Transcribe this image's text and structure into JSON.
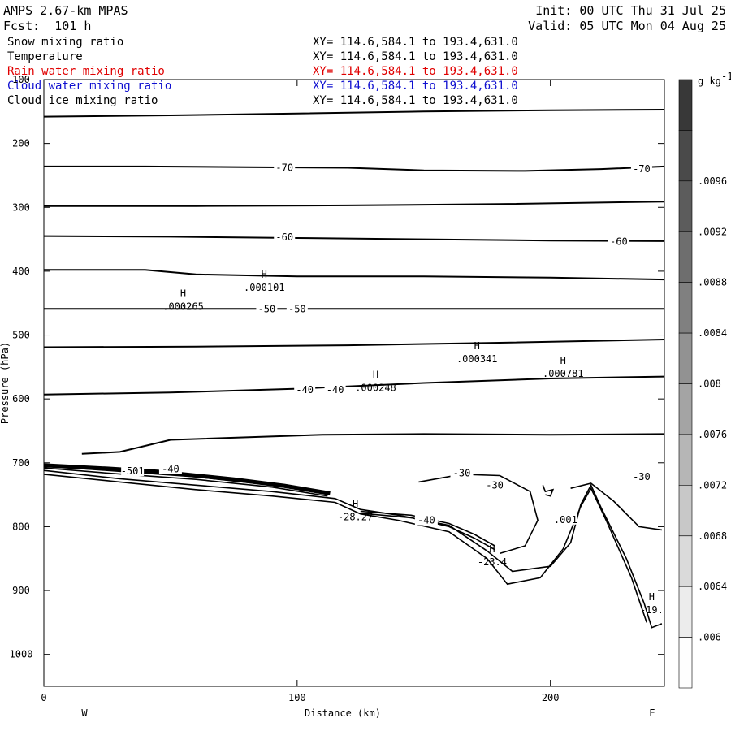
{
  "header": {
    "model": "AMPS 2.67-km MPAS",
    "forecast": "Fcst:  101 h",
    "init": "Init: 00 UTC Thu 31 Jul 25",
    "valid": "Valid: 05 UTC Mon 04 Aug 25"
  },
  "fields": [
    {
      "name": "Snow mixing ratio",
      "range": "XY= 114.6,584.1 to 193.4,631.0",
      "color": "#000000"
    },
    {
      "name": "Temperature",
      "range": "XY= 114.6,584.1 to 193.4,631.0",
      "color": "#000000"
    },
    {
      "name": "Rain water mixing ratio",
      "range": "XY= 114.6,584.1 to 193.4,631.0",
      "color": "#e00000"
    },
    {
      "name": "Cloud water mixing ratio",
      "range": "XY= 114.6,584.1 to 193.4,631.0",
      "color": "#1010d0"
    },
    {
      "name": "Cloud ice mixing ratio",
      "range": "XY= 114.6,584.1 to 193.4,631.0",
      "color": "#000000"
    }
  ],
  "chart_data": {
    "type": "line",
    "xlabel": "Distance (km)",
    "ylabel": "Pressure (hPa)",
    "xlim": [
      0,
      245
    ],
    "ylim": [
      100,
      1050
    ],
    "x_ticks": [
      "0",
      "100",
      "200"
    ],
    "y_ticks": [
      "100",
      "200",
      "300",
      "400",
      "500",
      "600",
      "700",
      "800",
      "900",
      "1000"
    ],
    "direction_left": "W",
    "direction_right": "E",
    "colorbar": {
      "unit": "g kg",
      "unit_exp": "-1",
      "tick_labels": [
        ".006",
        ".0064",
        ".0068",
        ".0072",
        ".0076",
        ".008",
        ".0084",
        ".0088",
        ".0092",
        ".0096"
      ]
    },
    "temperature_contours": [
      {
        "points": [
          [
            0,
            158
          ],
          [
            50,
            156
          ],
          [
            100,
            153
          ],
          [
            150,
            150
          ],
          [
            200,
            148
          ],
          [
            245,
            147
          ]
        ]
      },
      {
        "points": [
          [
            0,
            236
          ],
          [
            40,
            236
          ],
          [
            80,
            237
          ],
          [
            120,
            238
          ],
          [
            150,
            242
          ],
          [
            190,
            243
          ],
          [
            220,
            240
          ],
          [
            245,
            236
          ]
        ],
        "label": "-70",
        "label_at": [
          [
            95,
            238
          ],
          [
            236,
            240
          ]
        ]
      },
      {
        "points": [
          [
            0,
            298
          ],
          [
            60,
            298
          ],
          [
            120,
            297
          ],
          [
            180,
            295
          ],
          [
            245,
            291
          ]
        ]
      },
      {
        "points": [
          [
            0,
            345
          ],
          [
            50,
            346
          ],
          [
            100,
            348
          ],
          [
            150,
            350
          ],
          [
            200,
            352
          ],
          [
            245,
            353
          ]
        ],
        "label": "-60",
        "label_at": [
          [
            95,
            347
          ],
          [
            227,
            354
          ]
        ]
      },
      {
        "points": [
          [
            0,
            398
          ],
          [
            40,
            398
          ],
          [
            60,
            405
          ],
          [
            100,
            408
          ],
          [
            150,
            408
          ],
          [
            200,
            410
          ],
          [
            245,
            413
          ]
        ]
      },
      {
        "points": [
          [
            0,
            459
          ],
          [
            50,
            459
          ],
          [
            100,
            459
          ],
          [
            150,
            459
          ],
          [
            200,
            459
          ],
          [
            245,
            459
          ]
        ],
        "label": "-50",
        "label_at": [
          [
            88,
            459
          ],
          [
            100,
            459
          ]
        ]
      },
      {
        "points": [
          [
            0,
            519
          ],
          [
            60,
            518
          ],
          [
            120,
            516
          ],
          [
            180,
            512
          ],
          [
            245,
            507
          ]
        ]
      },
      {
        "points": [
          [
            0,
            593
          ],
          [
            50,
            590
          ],
          [
            100,
            584
          ],
          [
            150,
            575
          ],
          [
            200,
            568
          ],
          [
            245,
            565
          ]
        ],
        "label": "-40",
        "label_at": [
          [
            103,
            586
          ],
          [
            115,
            586
          ]
        ]
      },
      {
        "points": [
          [
            15,
            686
          ],
          [
            30,
            683
          ],
          [
            50,
            664
          ],
          [
            110,
            656
          ],
          [
            150,
            655
          ],
          [
            200,
            656
          ],
          [
            245,
            655
          ]
        ]
      }
    ],
    "maxima": [
      {
        "x": 87,
        "p": 418,
        "value": ".000101"
      },
      {
        "x": 55,
        "p": 448,
        "value": ".000265"
      },
      {
        "x": 171,
        "p": 530,
        "value": ".000341"
      },
      {
        "x": 205,
        "p": 553,
        "value": ".000781"
      },
      {
        "x": 131,
        "p": 575,
        "value": ".000248"
      },
      {
        "x": 123,
        "p": 777,
        "value": "-28.27"
      },
      {
        "x": 177,
        "p": 848,
        "value": "-23.4"
      },
      {
        "x": 240,
        "p": 923,
        "value": "-19."
      }
    ],
    "other_labels": [
      {
        "x": 35,
        "p": 713,
        "text": "-501"
      },
      {
        "x": 50,
        "p": 710,
        "text": "-40"
      },
      {
        "x": 165,
        "p": 716,
        "text": "-30"
      },
      {
        "x": 178,
        "p": 735,
        "text": "-30"
      },
      {
        "x": 151,
        "p": 790,
        "text": "-40"
      },
      {
        "x": 206,
        "p": 789,
        "text": ".001"
      },
      {
        "x": 236,
        "p": 722,
        "text": "-30"
      }
    ]
  }
}
